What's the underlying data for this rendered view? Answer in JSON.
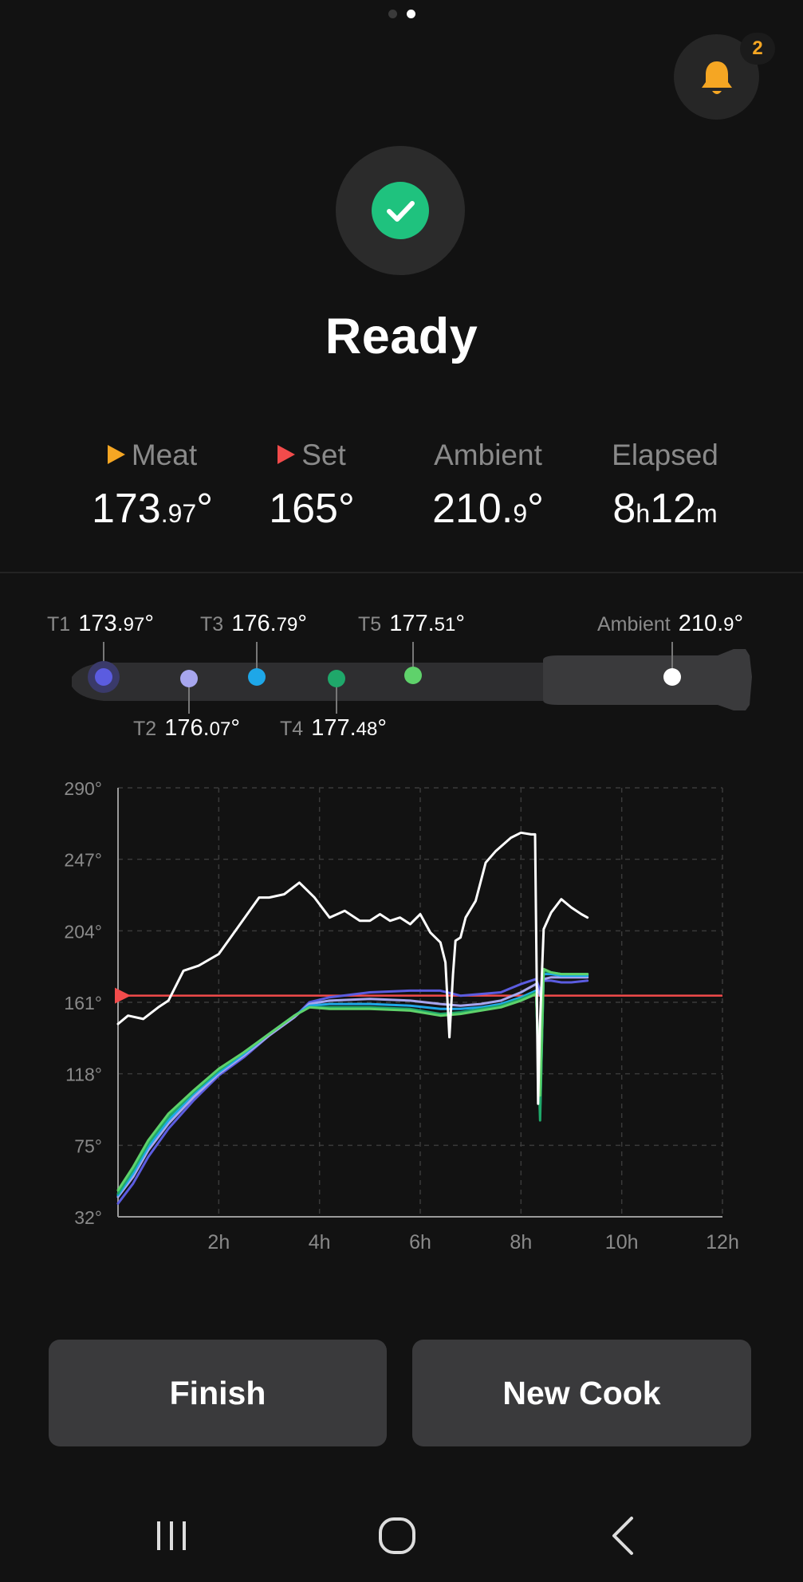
{
  "pager": {
    "count": 2,
    "active": 1
  },
  "notifications": {
    "count": "2",
    "icon": "bell-icon"
  },
  "status": {
    "title": "Ready",
    "icon": "check-icon",
    "color": "#1fc27e"
  },
  "stats": [
    {
      "label": "Meat",
      "marker_color": "#f5a623",
      "value_main": "173",
      "value_small": ".97",
      "value_suffix": "°"
    },
    {
      "label": "Set",
      "marker_color": "#f24b4b",
      "value_main": "165",
      "value_small": "",
      "value_suffix": "°"
    },
    {
      "label": "Ambient",
      "marker_color": "",
      "value_main": "210.",
      "value_small": "9",
      "value_suffix": "°"
    },
    {
      "label": "Elapsed",
      "marker_color": "",
      "value_main": "8",
      "value_small": "h",
      "value_main2": "12",
      "value_small2": "m"
    }
  ],
  "probe": {
    "sensors": [
      {
        "id": "T1",
        "main": "173.",
        "small": "97",
        "deg": "°",
        "color": "#5b5ce0"
      },
      {
        "id": "T2",
        "main": "176.",
        "small": "07",
        "deg": "°",
        "color": "#a7a6ee"
      },
      {
        "id": "T3",
        "main": "176.",
        "small": "79",
        "deg": "°",
        "color": "#1ea7e8"
      },
      {
        "id": "T4",
        "main": "177.",
        "small": "48",
        "deg": "°",
        "color": "#1fa86a"
      },
      {
        "id": "T5",
        "main": "177.",
        "small": "51",
        "deg": "°",
        "color": "#5fd26b"
      }
    ],
    "ambient": {
      "label": "Ambient",
      "main": "210.",
      "small": "9",
      "deg": "°",
      "color": "#ffffff"
    }
  },
  "chart_data": {
    "type": "line",
    "x_unit": "hours",
    "x_ticks": [
      "2h",
      "4h",
      "6h",
      "8h",
      "10h",
      "12h"
    ],
    "xlim": [
      0,
      12
    ],
    "y_ticks": [
      "290°",
      "247°",
      "204°",
      "161°",
      "118°",
      "75°",
      "32°"
    ],
    "ylim": [
      32,
      290
    ],
    "grid": true,
    "set_line": {
      "value": 165,
      "color": "#f24b4b"
    },
    "series": [
      {
        "color": "#ffffff",
        "x": [
          0,
          0.2,
          0.5,
          0.8,
          1.0,
          1.3,
          1.6,
          2.0,
          2.4,
          2.8,
          3.0,
          3.3,
          3.6,
          3.9,
          4.2,
          4.5,
          4.8,
          5.0,
          5.2,
          5.4,
          5.6,
          5.8,
          6.0,
          6.2,
          6.4,
          6.5,
          6.58,
          6.65,
          6.7,
          6.8,
          6.9,
          7.1,
          7.3,
          7.5,
          7.8,
          8.0,
          8.2,
          8.28,
          8.34,
          8.38,
          8.45,
          8.6,
          8.8,
          9.0,
          9.2,
          9.32
        ],
        "values": [
          148,
          153,
          151,
          158,
          162,
          180,
          183,
          190,
          207,
          224,
          224,
          226,
          233,
          224,
          212,
          216,
          210,
          210,
          214,
          210,
          212,
          208,
          214,
          203,
          197,
          185,
          140,
          178,
          198,
          200,
          212,
          222,
          245,
          252,
          260,
          263,
          262,
          262,
          100,
          150,
          205,
          215,
          223,
          218,
          214,
          212
        ]
      },
      {
        "color": "#5b5ce0",
        "x": [
          0,
          0.3,
          0.6,
          1.0,
          1.5,
          2.0,
          2.5,
          3.0,
          3.5,
          3.8,
          4.2,
          5.0,
          5.8,
          6.4,
          6.8,
          7.2,
          7.6,
          8.0,
          8.3,
          8.38,
          8.45,
          8.6,
          8.8,
          9.0,
          9.32
        ],
        "values": [
          40,
          52,
          68,
          85,
          102,
          117,
          128,
          141,
          152,
          161,
          164,
          167,
          168,
          168,
          165,
          166,
          167,
          172,
          175,
          168,
          174,
          174,
          173,
          173,
          174
        ]
      },
      {
        "color": "#a7a6ee",
        "x": [
          0,
          0.3,
          0.6,
          1.0,
          1.5,
          2.0,
          2.5,
          3.0,
          3.5,
          3.8,
          4.2,
          5.0,
          5.8,
          6.4,
          6.8,
          7.2,
          7.6,
          8.0,
          8.3,
          8.38,
          8.45,
          8.6,
          8.8,
          9.0,
          9.32
        ],
        "values": [
          44,
          56,
          72,
          88,
          104,
          118,
          129,
          141,
          152,
          160,
          162,
          163,
          162,
          160,
          159,
          160,
          162,
          167,
          172,
          165,
          175,
          176,
          176,
          176,
          176
        ]
      },
      {
        "color": "#1ea7e8",
        "x": [
          0,
          0.3,
          0.6,
          1.0,
          1.5,
          2.0,
          2.5,
          3.0,
          3.5,
          3.8,
          4.2,
          5.0,
          5.8,
          6.4,
          6.8,
          7.2,
          7.6,
          8.0,
          8.3,
          8.38,
          8.45,
          8.6,
          8.8,
          9.0,
          9.32
        ],
        "values": [
          45,
          58,
          74,
          90,
          106,
          119,
          130,
          142,
          153,
          159,
          160,
          160,
          159,
          157,
          157,
          158,
          160,
          164,
          168,
          95,
          178,
          178,
          177,
          177,
          177
        ]
      },
      {
        "color": "#1fa86a",
        "x": [
          0,
          0.3,
          0.6,
          1.0,
          1.5,
          2.0,
          2.5,
          3.0,
          3.5,
          3.8,
          4.2,
          5.0,
          5.8,
          6.4,
          6.8,
          7.2,
          7.6,
          8.0,
          8.3,
          8.38,
          8.45,
          8.6,
          8.8,
          9.0,
          9.32
        ],
        "values": [
          46,
          60,
          76,
          92,
          107,
          120,
          131,
          142,
          153,
          158,
          158,
          158,
          157,
          154,
          155,
          157,
          159,
          163,
          167,
          90,
          180,
          179,
          178,
          178,
          178
        ]
      },
      {
        "color": "#5fd26b",
        "x": [
          0,
          0.3,
          0.6,
          1.0,
          1.5,
          2.0,
          2.5,
          3.0,
          3.5,
          3.8,
          4.2,
          5.0,
          5.8,
          6.4,
          6.8,
          7.2,
          7.6,
          8.0,
          8.3,
          8.38,
          8.45,
          8.6,
          8.8,
          9.0,
          9.32
        ],
        "values": [
          48,
          62,
          78,
          94,
          108,
          121,
          131,
          142,
          153,
          158,
          157,
          157,
          156,
          153,
          154,
          156,
          158,
          162,
          166,
          105,
          181,
          179,
          178,
          178,
          178
        ]
      }
    ]
  },
  "actions": {
    "finish": "Finish",
    "new_cook": "New Cook"
  },
  "navbar": {
    "recents": "recents-icon",
    "home": "home-icon",
    "back": "back-icon"
  }
}
